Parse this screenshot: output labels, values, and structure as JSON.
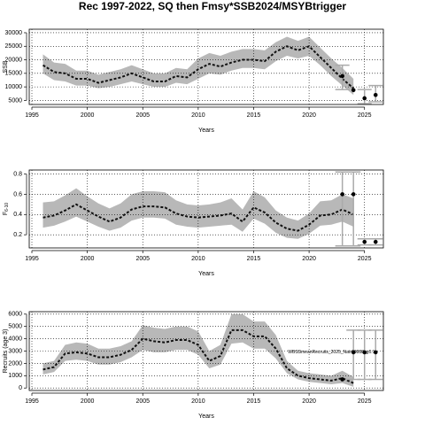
{
  "title": "Rec 1997-2022, SQ then Fmsy*SSB2024/MSYBtrigger",
  "chart_data": [
    {
      "type": "line",
      "xlabel": "Years",
      "ylabel": "SSB",
      "xlim": [
        1994.76,
        2026.7
      ],
      "ylim": [
        3500,
        31300
      ],
      "xticks": [
        1995,
        2000,
        2005,
        2010,
        2015,
        2020,
        2025
      ],
      "yticks": [
        5000,
        10000,
        15000,
        20000,
        25000,
        30000
      ],
      "grid": true,
      "x": [
        1996,
        1997,
        1998,
        1999,
        2000,
        2001,
        2002,
        2003,
        2004,
        2005,
        2006,
        2007,
        2008,
        2009,
        2010,
        2011,
        2012,
        2013,
        2014,
        2015,
        2016,
        2017,
        2018,
        2019,
        2020,
        2021,
        2022,
        2023,
        2024
      ],
      "series": [
        {
          "color": "#111111",
          "band_color": "#b8b8b8",
          "values": [
            18000,
            15500,
            15000,
            13000,
            13000,
            11500,
            12500,
            13500,
            15000,
            13500,
            12000,
            12000,
            14000,
            13500,
            16500,
            18500,
            17500,
            19000,
            20000,
            20000,
            19500,
            23000,
            25000,
            23500,
            25000,
            21000,
            17000,
            13000,
            9500
          ],
          "upper": [
            22000,
            19000,
            18500,
            16000,
            16000,
            14500,
            15500,
            16500,
            18000,
            16500,
            15000,
            15000,
            17000,
            16500,
            20500,
            22500,
            21500,
            23000,
            24000,
            24000,
            23500,
            26500,
            28500,
            27000,
            28500,
            24500,
            20500,
            17000,
            13000
          ],
          "lower": [
            15000,
            12500,
            12000,
            10500,
            10500,
            9500,
            10000,
            11000,
            12000,
            11000,
            10000,
            10000,
            11500,
            11000,
            13000,
            15000,
            14500,
            16000,
            17000,
            17000,
            16500,
            19500,
            21500,
            20500,
            21500,
            18000,
            14000,
            10500,
            7000
          ]
        }
      ],
      "points": {
        "color": "#000000",
        "bar_color": "#aaaaaa",
        "x": [
          2023,
          2024,
          2025,
          2026
        ],
        "values": [
          14000,
          8800,
          5800,
          7000
        ],
        "lower": [
          9000,
          null,
          3800,
          4500
        ],
        "upper": [
          18000,
          null,
          9000,
          10500
        ]
      }
    },
    {
      "type": "line",
      "xlabel": "Years",
      "ylabel": "F",
      "ylabel_sub": "6-10",
      "xlim": [
        1994.76,
        2026.7
      ],
      "ylim": [
        0.07,
        0.84
      ],
      "xticks": [
        1995,
        2000,
        2005,
        2010,
        2015,
        2020,
        2025
      ],
      "yticks": [
        0.2,
        0.4,
        0.6,
        0.8
      ],
      "grid": true,
      "x": [
        1996,
        1997,
        1998,
        1999,
        2000,
        2001,
        2002,
        2003,
        2004,
        2005,
        2006,
        2007,
        2008,
        2009,
        2010,
        2011,
        2012,
        2013,
        2014,
        2015,
        2016,
        2017,
        2018,
        2019,
        2020,
        2021,
        2022,
        2023,
        2024
      ],
      "series": [
        {
          "color": "#111111",
          "band_color": "#b8b8b8",
          "values": [
            0.37,
            0.39,
            0.44,
            0.5,
            0.44,
            0.38,
            0.33,
            0.37,
            0.45,
            0.48,
            0.48,
            0.47,
            0.41,
            0.38,
            0.37,
            0.38,
            0.39,
            0.41,
            0.33,
            0.47,
            0.42,
            0.32,
            0.26,
            0.24,
            0.3,
            0.39,
            0.4,
            0.45,
            0.4
          ],
          "upper": [
            0.52,
            0.53,
            0.59,
            0.66,
            0.58,
            0.51,
            0.46,
            0.51,
            0.6,
            0.63,
            0.63,
            0.62,
            0.54,
            0.5,
            0.49,
            0.5,
            0.52,
            0.56,
            0.45,
            0.63,
            0.57,
            0.44,
            0.37,
            0.34,
            0.41,
            0.53,
            0.54,
            0.6,
            0.56
          ],
          "lower": [
            0.27,
            0.29,
            0.33,
            0.38,
            0.33,
            0.28,
            0.24,
            0.27,
            0.34,
            0.37,
            0.37,
            0.36,
            0.3,
            0.28,
            0.27,
            0.28,
            0.29,
            0.3,
            0.23,
            0.36,
            0.31,
            0.22,
            0.17,
            0.16,
            0.21,
            0.29,
            0.3,
            0.33,
            0.28
          ]
        }
      ],
      "points": {
        "color": "#000000",
        "bar_color": "#aaaaaa",
        "x": [
          2023,
          2024,
          2025,
          2026
        ],
        "values": [
          0.6,
          0.6,
          0.13,
          0.13
        ],
        "lower": [
          0.09,
          0.09,
          0.1,
          0.1
        ],
        "upper": [
          0.82,
          0.82,
          0.16,
          0.16
        ]
      }
    },
    {
      "type": "line",
      "xlabel": "Years",
      "ylabel": "Recruits (age 3)",
      "xlim": [
        1994.76,
        2026.7
      ],
      "ylim": [
        -200,
        6200
      ],
      "xticks": [
        1995,
        2000,
        2005,
        2010,
        2015,
        2020,
        2025
      ],
      "yticks": [
        0,
        1000,
        2000,
        3000,
        4000,
        5000,
        6000
      ],
      "grid": true,
      "annotation": "WBSSmeanRecruits_2025_Natr18888_g0.1c",
      "x": [
        1996,
        1997,
        1998,
        1999,
        2000,
        2001,
        2002,
        2003,
        2004,
        2005,
        2006,
        2007,
        2008,
        2009,
        2010,
        2011,
        2012,
        2013,
        2014,
        2015,
        2016,
        2017,
        2018,
        2019,
        2020,
        2021,
        2022,
        2023,
        2024
      ],
      "series": [
        {
          "color": "#111111",
          "band_color": "#b8b8b8",
          "values": [
            1500,
            1700,
            2800,
            2900,
            2800,
            2500,
            2500,
            2700,
            3100,
            4000,
            3800,
            3700,
            3900,
            3900,
            3500,
            2200,
            2600,
            4700,
            4700,
            4200,
            4200,
            3200,
            1600,
            1000,
            800,
            700,
            600,
            800,
            400
          ],
          "upper": [
            2000,
            2200,
            3500,
            3700,
            3600,
            3200,
            3200,
            3400,
            3800,
            5100,
            4900,
            4800,
            5000,
            5000,
            4600,
            3000,
            3500,
            6000,
            6000,
            5400,
            5400,
            4300,
            2200,
            1400,
            1200,
            1100,
            1000,
            1400,
            900
          ],
          "lower": [
            1100,
            1300,
            2200,
            2300,
            2200,
            1900,
            1900,
            2100,
            2500,
            3100,
            2900,
            2900,
            3100,
            3100,
            2700,
            1600,
            1900,
            3600,
            3700,
            3200,
            3200,
            2400,
            1200,
            700,
            500,
            400,
            300,
            400,
            100
          ]
        }
      ],
      "points": {
        "color": "#000000",
        "bar_color": "#aaaaaa",
        "x": [
          2023,
          2024,
          2025,
          2026
        ],
        "values": [
          700,
          2900,
          2900,
          2900
        ],
        "lower": [
          null,
          700,
          700,
          700
        ],
        "upper": [
          null,
          4700,
          4700,
          4700
        ]
      }
    }
  ]
}
